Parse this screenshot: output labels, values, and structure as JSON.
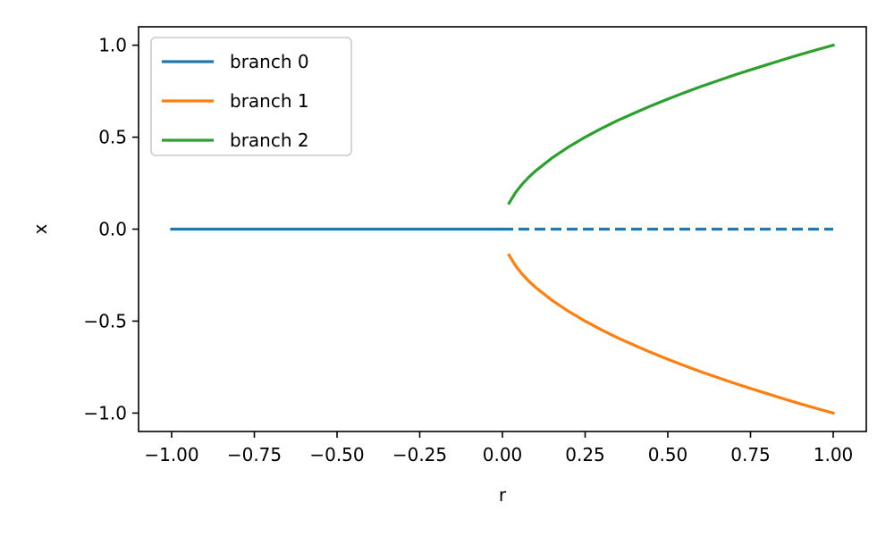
{
  "chart_data": {
    "type": "line",
    "title": "",
    "xlabel": "r",
    "ylabel": "x",
    "xlim": [
      -1.1,
      1.1
    ],
    "ylim": [
      -1.1,
      1.1
    ],
    "xticks": [
      -1.0,
      -0.75,
      -0.5,
      -0.25,
      0.0,
      0.25,
      0.5,
      0.75,
      1.0
    ],
    "xtick_labels": [
      "−1.00",
      "−0.75",
      "−0.50",
      "−0.25",
      "0.00",
      "0.25",
      "0.50",
      "0.75",
      "1.00"
    ],
    "yticks": [
      -1.0,
      -0.5,
      0.0,
      0.5,
      1.0
    ],
    "ytick_labels": [
      "−1.0",
      "−0.5",
      "0.0",
      "0.5",
      "1.0"
    ],
    "grid": false,
    "legend": {
      "location": "upper left"
    },
    "colors": {
      "branch0": "#1f77b4",
      "branch1": "#ff7f0e",
      "branch2": "#2ca02c"
    },
    "series": [
      {
        "name": "branch 0",
        "color": "#1f77b4",
        "segments": [
          {
            "style": "solid",
            "points": [
              [
                -1.0,
                0.0
              ],
              [
                0.0,
                0.0
              ]
            ]
          },
          {
            "style": "dashed",
            "points": [
              [
                0.0,
                0.0
              ],
              [
                1.0,
                0.0
              ]
            ]
          }
        ]
      },
      {
        "name": "branch 1",
        "color": "#ff7f0e",
        "segments": [
          {
            "style": "solid",
            "points": [
              [
                0.02,
                -0.141
              ],
              [
                0.04,
                -0.2
              ],
              [
                0.06,
                -0.245
              ],
              [
                0.08,
                -0.283
              ],
              [
                0.1,
                -0.316
              ],
              [
                0.15,
                -0.387
              ],
              [
                0.2,
                -0.447
              ],
              [
                0.25,
                -0.5
              ],
              [
                0.3,
                -0.548
              ],
              [
                0.35,
                -0.592
              ],
              [
                0.4,
                -0.632
              ],
              [
                0.45,
                -0.671
              ],
              [
                0.5,
                -0.707
              ],
              [
                0.55,
                -0.742
              ],
              [
                0.6,
                -0.775
              ],
              [
                0.65,
                -0.806
              ],
              [
                0.7,
                -0.837
              ],
              [
                0.75,
                -0.866
              ],
              [
                0.8,
                -0.894
              ],
              [
                0.85,
                -0.922
              ],
              [
                0.9,
                -0.949
              ],
              [
                0.95,
                -0.975
              ],
              [
                1.0,
                -1.0
              ]
            ]
          }
        ]
      },
      {
        "name": "branch 2",
        "color": "#2ca02c",
        "segments": [
          {
            "style": "solid",
            "points": [
              [
                0.02,
                0.141
              ],
              [
                0.04,
                0.2
              ],
              [
                0.06,
                0.245
              ],
              [
                0.08,
                0.283
              ],
              [
                0.1,
                0.316
              ],
              [
                0.15,
                0.387
              ],
              [
                0.2,
                0.447
              ],
              [
                0.25,
                0.5
              ],
              [
                0.3,
                0.548
              ],
              [
                0.35,
                0.592
              ],
              [
                0.4,
                0.632
              ],
              [
                0.45,
                0.671
              ],
              [
                0.5,
                0.707
              ],
              [
                0.55,
                0.742
              ],
              [
                0.6,
                0.775
              ],
              [
                0.65,
                0.806
              ],
              [
                0.7,
                0.837
              ],
              [
                0.75,
                0.866
              ],
              [
                0.8,
                0.894
              ],
              [
                0.85,
                0.922
              ],
              [
                0.9,
                0.949
              ],
              [
                0.95,
                0.975
              ],
              [
                1.0,
                1.0
              ]
            ]
          }
        ]
      }
    ]
  }
}
